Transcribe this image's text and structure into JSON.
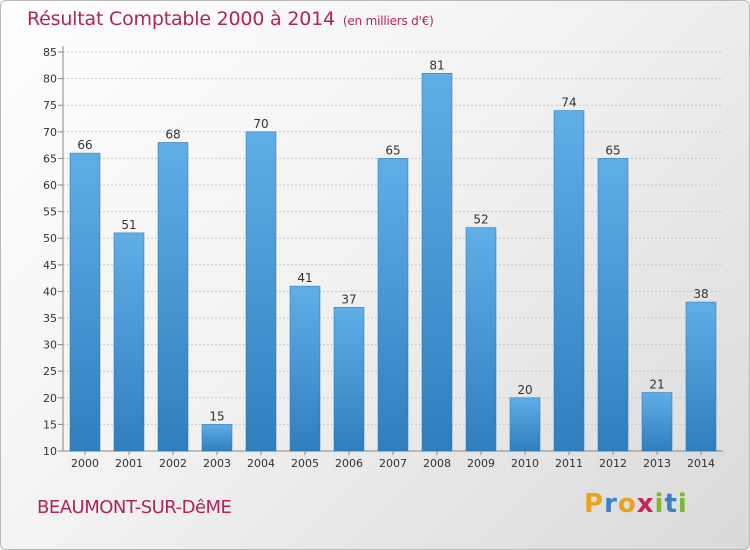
{
  "title": "Résultat Comptable 2000 à 2014",
  "subtitle": "(en milliers d'€)",
  "commune": "BEAUMONT-SUR-DêME",
  "logo": {
    "letters": [
      "P",
      "r",
      "o",
      "x",
      "i",
      "t",
      "i"
    ],
    "colors": [
      "#e8a31c",
      "#3b82c4",
      "#e8a31c",
      "#c7255a",
      "#7cb82f",
      "#3b82c4",
      "#7cb82f"
    ]
  },
  "colors": {
    "bar_light": "#5faee6",
    "bar_dark": "#2f7fbf",
    "title": "#b0245a"
  },
  "chart_data": {
    "type": "bar",
    "title": "Résultat Comptable 2000 à 2014",
    "subtitle": "(en milliers d'€)",
    "categories": [
      "2000",
      "2001",
      "2002",
      "2003",
      "2004",
      "2005",
      "2006",
      "2007",
      "2008",
      "2009",
      "2010",
      "2011",
      "2012",
      "2013",
      "2014"
    ],
    "values": [
      66,
      51,
      68,
      15,
      70,
      41,
      37,
      65,
      81,
      52,
      20,
      74,
      65,
      21,
      38
    ],
    "ylim": [
      10,
      85
    ],
    "yticks": [
      10,
      15,
      20,
      25,
      30,
      35,
      40,
      45,
      50,
      55,
      60,
      65,
      70,
      75,
      80,
      85
    ],
    "grid": true,
    "xlabel": "",
    "ylabel": ""
  }
}
